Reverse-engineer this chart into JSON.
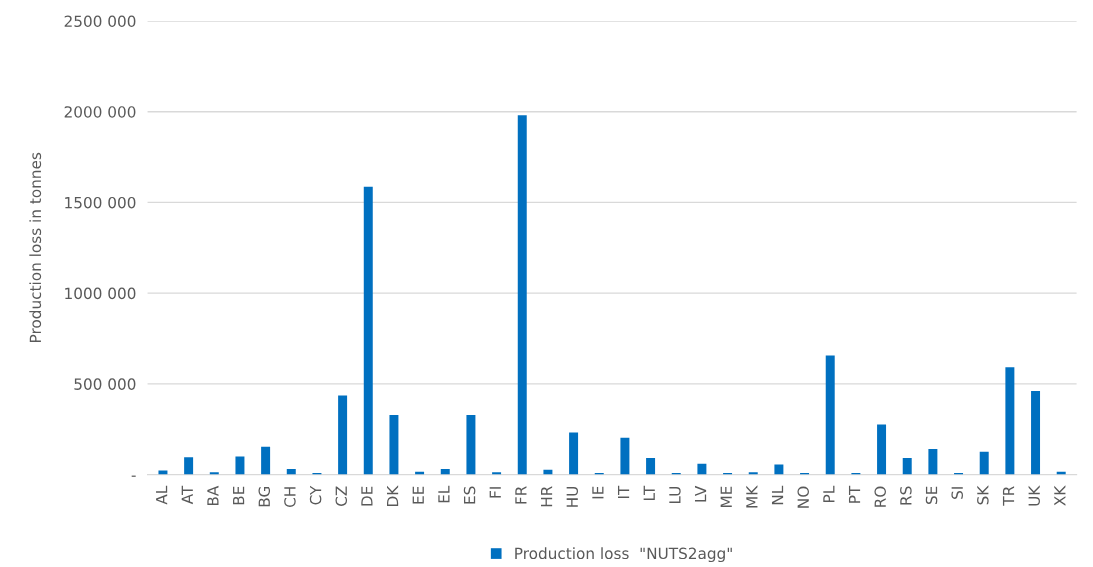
{
  "chart_data": {
    "type": "bar",
    "ylabel": "Production loss in tonnes",
    "categories": [
      "AL",
      "AT",
      "BA",
      "BE",
      "BG",
      "CH",
      "CY",
      "CZ",
      "DE",
      "DK",
      "EE",
      "EL",
      "ES",
      "FI",
      "FR",
      "HR",
      "HU",
      "IE",
      "IT",
      "LT",
      "LU",
      "LV",
      "ME",
      "MK",
      "NL",
      "NO",
      "PL",
      "PT",
      "RO",
      "RS",
      "SE",
      "SI",
      "SK",
      "TR",
      "UK",
      "XK"
    ],
    "series": [
      {
        "name": "Production loss  \"NUTS2agg\"",
        "color": "#0070c0",
        "values": [
          22000,
          95000,
          13000,
          100000,
          153000,
          31000,
          9000,
          436000,
          1586000,
          329000,
          16000,
          31000,
          329000,
          13000,
          1980000,
          27000,
          232000,
          9000,
          203000,
          91000,
          9000,
          60000,
          9000,
          13000,
          55000,
          9000,
          656000,
          9000,
          276000,
          91000,
          141000,
          9000,
          126000,
          591000,
          460000,
          16000
        ]
      }
    ],
    "ylim": [
      0,
      2500000
    ],
    "yticks": [
      {
        "value": 0,
        "label": "-"
      },
      {
        "value": 500000,
        "label": "500 000"
      },
      {
        "value": 1000000,
        "label": "1000 000"
      },
      {
        "value": 1500000,
        "label": "1500 000"
      },
      {
        "value": 2000000,
        "label": "2000 000"
      },
      {
        "value": 2500000,
        "label": "2500 000"
      }
    ],
    "grid": "y",
    "legend": "bottom"
  }
}
